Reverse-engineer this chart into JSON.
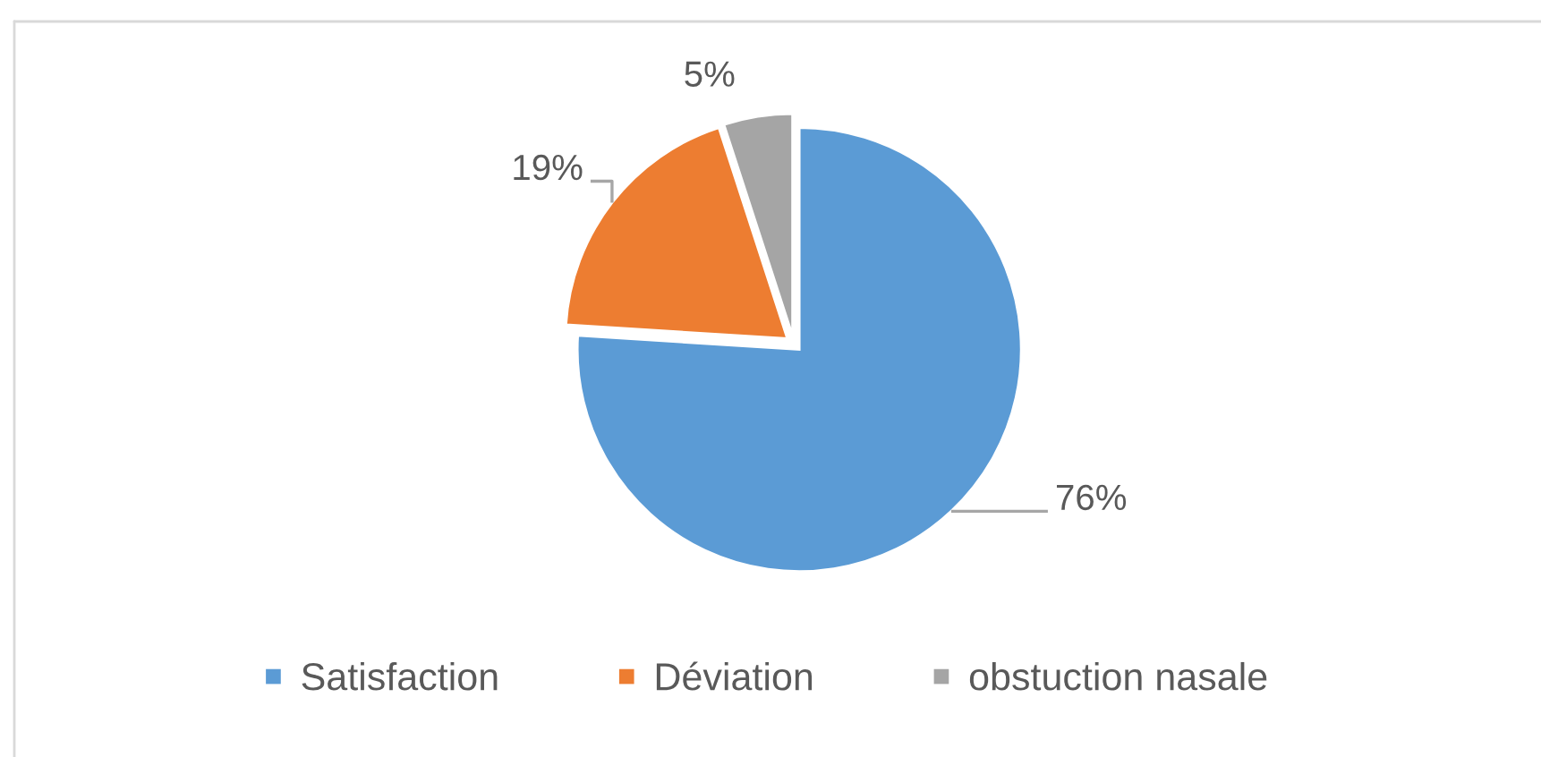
{
  "chart_data": {
    "type": "pie",
    "categories": [
      "Satisfaction",
      "Déviation",
      "obstuction nasale"
    ],
    "values": [
      76,
      19,
      5
    ],
    "colors": [
      "#5b9bd5",
      "#ed7d31",
      "#a5a5a5"
    ],
    "value_labels": [
      "76%",
      "19%",
      "5%"
    ],
    "legend": "bottom"
  }
}
